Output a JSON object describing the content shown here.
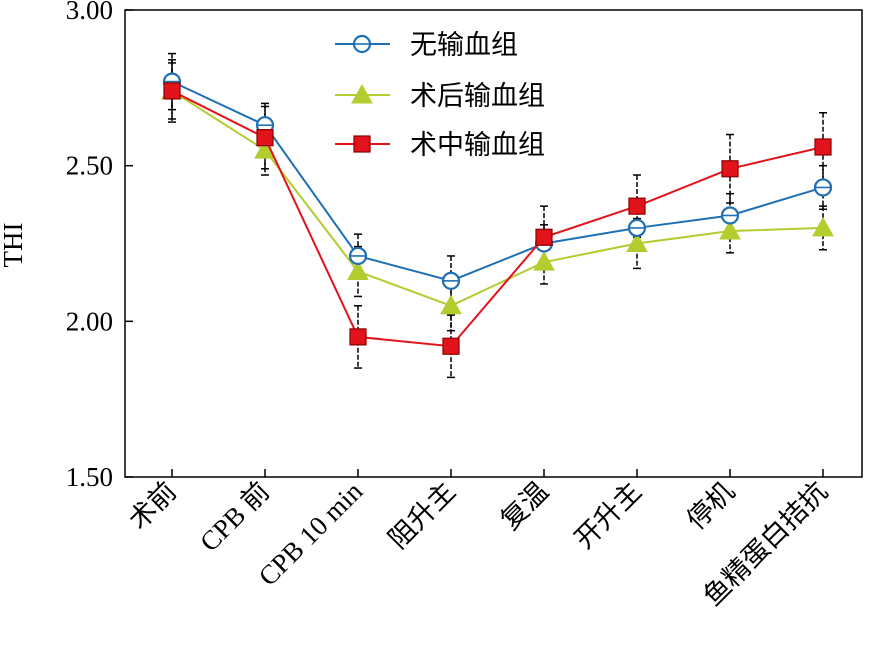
{
  "chart_data": {
    "type": "line",
    "title": "",
    "xlabel": "",
    "ylabel": "THI",
    "ylim": [
      1.5,
      3.0
    ],
    "yticks": [
      "1.50",
      "2.00",
      "2.50",
      "3.00"
    ],
    "categories": [
      "术前",
      "CPB 前",
      "CPB 10 min",
      "阻升主",
      "复温",
      "开升主",
      "停机",
      "鱼精蛋白拮抗"
    ],
    "legend_position": "top-center",
    "grid": false,
    "series": [
      {
        "name": "无输血组",
        "color": "#1f6fb4",
        "marker": "circle-open",
        "values": [
          2.77,
          2.63,
          2.21,
          2.13,
          2.25,
          2.3,
          2.34,
          2.43
        ],
        "errors": [
          0.09,
          0.07,
          0.07,
          0.08,
          0.06,
          0.06,
          0.07,
          0.07
        ]
      },
      {
        "name": "术后输血组",
        "color": "#b3cc2e",
        "marker": "triangle",
        "values": [
          2.74,
          2.55,
          2.16,
          2.05,
          2.19,
          2.25,
          2.29,
          2.3
        ],
        "errors": [
          0.09,
          0.08,
          0.08,
          0.08,
          0.07,
          0.08,
          0.07,
          0.07
        ]
      },
      {
        "name": "术中输血组",
        "color": "#e2131b",
        "marker": "square",
        "values": [
          2.74,
          2.59,
          1.95,
          1.92,
          2.27,
          2.37,
          2.49,
          2.56
        ],
        "errors": [
          0.1,
          0.1,
          0.1,
          0.1,
          0.1,
          0.1,
          0.11,
          0.11
        ]
      }
    ]
  }
}
